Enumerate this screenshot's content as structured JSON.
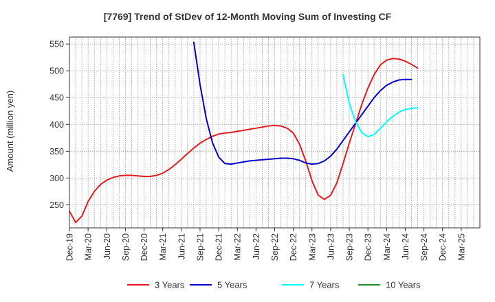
{
  "chart_data": {
    "type": "line",
    "title": "[7769]  Trend of StDev of 12-Month Moving Sum of Investing CF",
    "xlabel": "",
    "ylabel": "Amount (million yen)",
    "x_ticks": [
      "Dec-19",
      "Mar-20",
      "Jun-20",
      "Sep-20",
      "Dec-20",
      "Mar-21",
      "Jun-21",
      "Sep-21",
      "Dec-21",
      "Mar-22",
      "Jun-22",
      "Sep-22",
      "Dec-22",
      "Mar-23",
      "Jun-23",
      "Sep-23",
      "Dec-23",
      "Mar-24",
      "Jun-24",
      "Sep-24",
      "Dec-24",
      "Mar-25"
    ],
    "y_ticks": [
      250,
      300,
      350,
      400,
      450,
      500,
      550
    ],
    "ylim": [
      207,
      563
    ],
    "grid": true,
    "legend_position": "bottom",
    "x_months": [
      "Dec-19",
      "Jan-20",
      "Feb-20",
      "Mar-20",
      "Apr-20",
      "May-20",
      "Jun-20",
      "Jul-20",
      "Aug-20",
      "Sep-20",
      "Oct-20",
      "Nov-20",
      "Dec-20",
      "Jan-21",
      "Feb-21",
      "Mar-21",
      "Apr-21",
      "May-21",
      "Jun-21",
      "Jul-21",
      "Aug-21",
      "Sep-21",
      "Oct-21",
      "Nov-21",
      "Dec-21",
      "Jan-22",
      "Feb-22",
      "Mar-22",
      "Apr-22",
      "May-22",
      "Jun-22",
      "Jul-22",
      "Aug-22",
      "Sep-22",
      "Oct-22",
      "Nov-22",
      "Dec-22",
      "Jan-23",
      "Feb-23",
      "Mar-23",
      "Apr-23",
      "May-23",
      "Jun-23",
      "Jul-23",
      "Aug-23",
      "Sep-23",
      "Oct-23",
      "Nov-23",
      "Dec-23",
      "Jan-24",
      "Feb-24",
      "Mar-24",
      "Apr-24",
      "May-24",
      "Jun-24",
      "Jul-24",
      "Aug-24",
      "Sep-24",
      "Oct-24",
      "Nov-24",
      "Dec-24",
      "Jan-25",
      "Feb-25",
      "Mar-25",
      "Apr-25",
      "May-25",
      "Jun-25"
    ],
    "series": [
      {
        "name": "3 Years",
        "color": "#e41a1c",
        "start": "Dec-19",
        "values": [
          238,
          217,
          229,
          256,
          275,
          288,
          296,
          301,
          304,
          305,
          305,
          304,
          303,
          303,
          305,
          309,
          316,
          325,
          335,
          346,
          356,
          365,
          372,
          378,
          382,
          384,
          385,
          387,
          389,
          391,
          393,
          395,
          397,
          398,
          397,
          393,
          384,
          363,
          332,
          295,
          268,
          260,
          268,
          291,
          327,
          365,
          401,
          437,
          468,
          493,
          511,
          520,
          523,
          522,
          518,
          512,
          505
        ]
      },
      {
        "name": "5 Years",
        "color": "#0000cd",
        "start": "Aug-21",
        "values": [
          553,
          474,
          411,
          366,
          339,
          327,
          326,
          328,
          330,
          332,
          333,
          334,
          335,
          336,
          337,
          337,
          336,
          333,
          328,
          326,
          327,
          332,
          341,
          354,
          370,
          386,
          402,
          418,
          434,
          450,
          463,
          473,
          479,
          483,
          484,
          484
        ]
      },
      {
        "name": "7 Years",
        "color": "#00ffff",
        "start": "Aug-23",
        "values": [
          493,
          439,
          405,
          385,
          377,
          381,
          393,
          405,
          415,
          423,
          428,
          430,
          431
        ]
      },
      {
        "name": "10 Years",
        "color": "#228b22",
        "start": "",
        "values": []
      }
    ]
  }
}
